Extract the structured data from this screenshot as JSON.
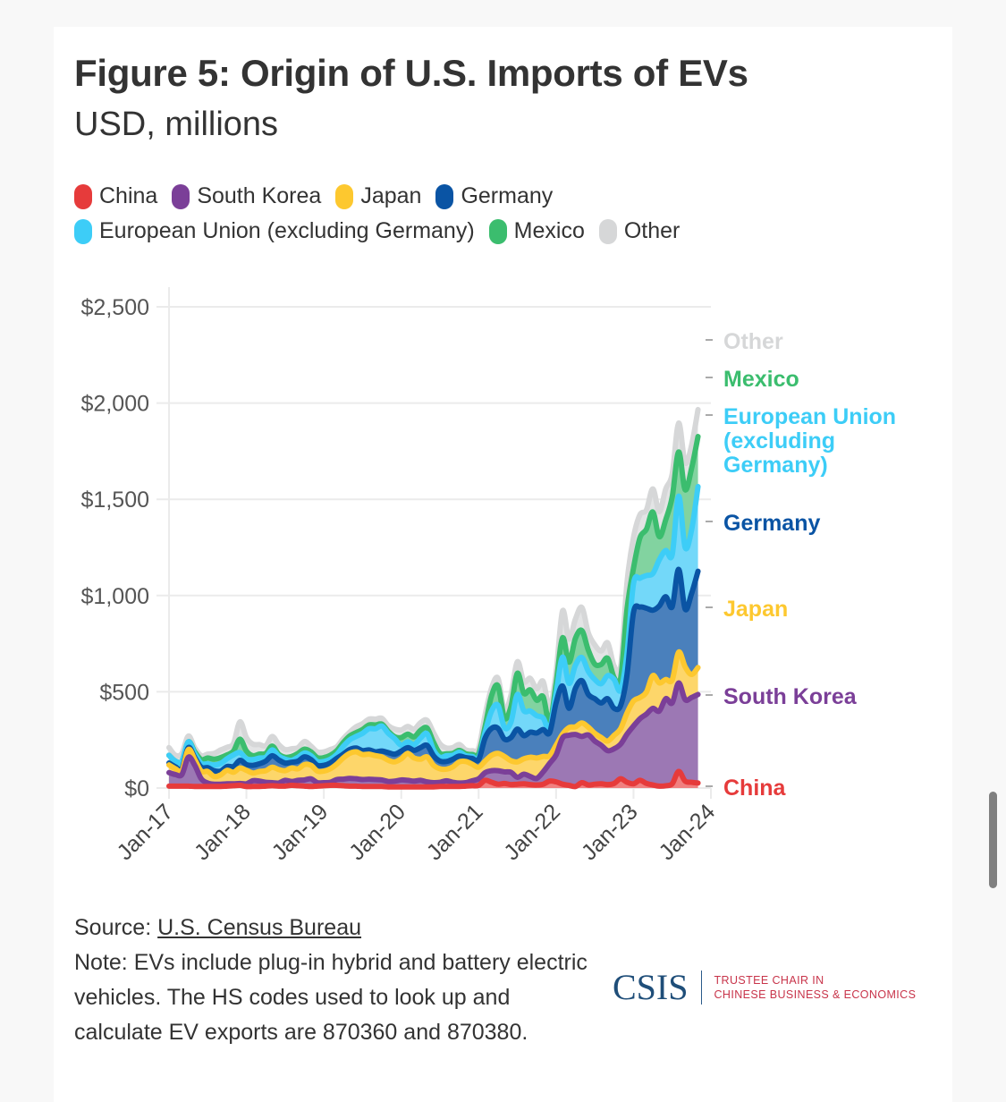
{
  "header": {
    "title": "Figure 5: Origin of U.S. Imports of EVs",
    "subtitle": "USD, millions"
  },
  "legend": {
    "row1": [
      {
        "label": "China",
        "color": "#e63b3b"
      },
      {
        "label": "South Korea",
        "color": "#7b3f98"
      },
      {
        "label": "Japan",
        "color": "#fdc82f"
      },
      {
        "label": "Germany",
        "color": "#0a54a4"
      }
    ],
    "row2": [
      {
        "label": "European Union (excluding Germany)",
        "color": "#3dcdf7"
      },
      {
        "label": "Mexico",
        "color": "#3bbd6e"
      },
      {
        "label": "Other",
        "color": "#d6d7d8"
      }
    ]
  },
  "footer": {
    "source_prefix": "Source: ",
    "source_link": "U.S. Census Bureau",
    "note": "Note: EVs include plug-in hybrid and battery electric vehicles. The HS codes used to look up and calculate EV exports are 870360 and 870380."
  },
  "logo": {
    "name": "CSIS",
    "line1": "TRUSTEE CHAIR IN",
    "line2": "CHINESE BUSINESS & ECONOMICS"
  },
  "chart_data": {
    "type": "area",
    "stacked": true,
    "title": "Figure 5: Origin of U.S. Imports of EVs",
    "subtitle": "USD, millions",
    "xlabel": "",
    "ylabel": "",
    "ylim": [
      0,
      2500
    ],
    "yticks": [
      0,
      500,
      1000,
      1500,
      2000,
      2500
    ],
    "ytick_labels": [
      "$0",
      "$500",
      "$1,000",
      "$1,500",
      "$2,000",
      "$2,500"
    ],
    "xticks": [
      "Jan-17",
      "Jan-18",
      "Jan-19",
      "Jan-20",
      "Jan-21",
      "Jan-22",
      "Jan-23",
      "Jan-24"
    ],
    "x_start": "2017-01",
    "x_frequency": "monthly",
    "grid": true,
    "legend_position": "top",
    "series": [
      {
        "name": "China",
        "label": "China",
        "color": "#e63b3b",
        "fill": "#f08080",
        "values": [
          10,
          10,
          10,
          10,
          8,
          8,
          8,
          8,
          8,
          10,
          12,
          14,
          8,
          8,
          8,
          10,
          12,
          10,
          10,
          14,
          12,
          10,
          8,
          10,
          12,
          14,
          14,
          12,
          10,
          10,
          8,
          8,
          8,
          8,
          6,
          6,
          6,
          6,
          6,
          6,
          6,
          6,
          8,
          8,
          8,
          8,
          10,
          12,
          14,
          40,
          30,
          20,
          24,
          18,
          20,
          22,
          18,
          16,
          20,
          36,
          32,
          20,
          14,
          8,
          28,
          16,
          20,
          22,
          18,
          24,
          48,
          30,
          22,
          40,
          24,
          16,
          10,
          12,
          22,
          86,
          36,
          30,
          26
        ]
      },
      {
        "name": "South Korea",
        "label": "South Korea",
        "color": "#7b3f98",
        "fill": "#9c78b4",
        "values": [
          70,
          60,
          60,
          150,
          110,
          40,
          18,
          12,
          12,
          12,
          10,
          10,
          14,
          30,
          28,
          20,
          16,
          16,
          30,
          20,
          28,
          32,
          40,
          18,
          16,
          16,
          30,
          34,
          40,
          38,
          36,
          38,
          36,
          34,
          28,
          30,
          36,
          34,
          30,
          34,
          26,
          22,
          22,
          30,
          22,
          18,
          18,
          26,
          34,
          40,
          60,
          70,
          60,
          64,
          36,
          50,
          42,
          34,
          64,
          92,
          140,
          240,
          260,
          270,
          240,
          260,
          224,
          200,
          176,
          180,
          180,
          250,
          300,
          320,
          360,
          398,
          390,
          452,
          420,
          460,
          424,
          440,
          460
        ]
      },
      {
        "name": "Japan",
        "label": "Japan",
        "color": "#fdc82f",
        "fill": "#fdd66a",
        "values": [
          40,
          30,
          20,
          40,
          30,
          40,
          60,
          40,
          48,
          70,
          60,
          80,
          70,
          40,
          50,
          60,
          80,
          70,
          50,
          70,
          60,
          80,
          70,
          60,
          60,
          70,
          80,
          110,
          130,
          140,
          130,
          130,
          124,
          120,
          110,
          100,
          110,
          140,
          120,
          110,
          130,
          90,
          70,
          60,
          80,
          110,
          110,
          86,
          60,
          60,
          80,
          90,
          80,
          60,
          80,
          80,
          100,
          106,
          80,
          40,
          50,
          20,
          40,
          40,
          70,
          40,
          40,
          40,
          50,
          70,
          80,
          110,
          130,
          110,
          114,
          170,
          146,
          100,
          120,
          160,
          170,
          120,
          140
        ]
      },
      {
        "name": "Germany",
        "label": "Germany",
        "color": "#0a54a4",
        "fill": "#4a80bc",
        "values": [
          10,
          10,
          10,
          10,
          10,
          20,
          20,
          30,
          20,
          20,
          30,
          40,
          30,
          40,
          40,
          50,
          60,
          50,
          40,
          30,
          40,
          40,
          30,
          30,
          30,
          30,
          30,
          20,
          20,
          20,
          20,
          22,
          20,
          30,
          40,
          40,
          40,
          30,
          40,
          60,
          60,
          50,
          40,
          40,
          40,
          30,
          20,
          30,
          40,
          120,
          140,
          130,
          90,
          120,
          170,
          120,
          130,
          130,
          140,
          120,
          220,
          250,
          100,
          200,
          220,
          170,
          180,
          180,
          220,
          140,
          120,
          200,
          460,
          470,
          436,
          340,
          400,
          430,
          380,
          430,
          300,
          420,
          500
        ]
      },
      {
        "name": "European Union (excluding Germany)",
        "label": "European Union (excluding Germany)",
        "color": "#3dcdf7",
        "fill": "#73d8f9",
        "values": [
          40,
          30,
          40,
          30,
          20,
          20,
          20,
          30,
          40,
          40,
          60,
          40,
          30,
          30,
          30,
          20,
          30,
          20,
          20,
          10,
          20,
          20,
          20,
          20,
          20,
          20,
          20,
          40,
          50,
          60,
          90,
          110,
          120,
          130,
          100,
          80,
          30,
          30,
          30,
          50,
          60,
          30,
          20,
          30,
          20,
          20,
          10,
          10,
          10,
          30,
          90,
          120,
          60,
          80,
          180,
          130,
          110,
          90,
          60,
          20,
          50,
          150,
          130,
          120,
          120,
          120,
          100,
          100,
          120,
          150,
          80,
          110,
          150,
          150,
          170,
          190,
          240,
          240,
          270,
          380,
          320,
          330,
          440
        ]
      },
      {
        "name": "Mexico",
        "label": "Mexico",
        "color": "#3bbd6e",
        "fill": "#82d3a0",
        "values": [
          0,
          0,
          0,
          0,
          10,
          20,
          30,
          30,
          30,
          20,
          20,
          70,
          40,
          20,
          20,
          20,
          20,
          10,
          10,
          20,
          20,
          20,
          20,
          20,
          20,
          20,
          20,
          20,
          20,
          20,
          20,
          20,
          20,
          10,
          10,
          10,
          40,
          40,
          40,
          40,
          30,
          40,
          20,
          10,
          10,
          10,
          10,
          10,
          20,
          30,
          80,
          100,
          50,
          80,
          110,
          90,
          110,
          80,
          110,
          30,
          50,
          100,
          110,
          140,
          140,
          110,
          80,
          100,
          90,
          10,
          60,
          230,
          80,
          210,
          240,
          320,
          120,
          160,
          300,
          230,
          300,
          320,
          260
        ]
      },
      {
        "name": "Other",
        "label": "Other",
        "color": "#d6d7d8",
        "fill": "#e3e4e5",
        "values": [
          40,
          30,
          40,
          30,
          20,
          20,
          20,
          30,
          40,
          40,
          40,
          90,
          70,
          60,
          50,
          40,
          50,
          50,
          40,
          40,
          30,
          40,
          30,
          30,
          30,
          30,
          20,
          20,
          20,
          30,
          30,
          30,
          30,
          30,
          30,
          40,
          40,
          40,
          40,
          40,
          40,
          50,
          50,
          30,
          30,
          30,
          20,
          20,
          30,
          60,
          40,
          40,
          40,
          60,
          60,
          60,
          60,
          60,
          80,
          80,
          60,
          140,
          120,
          100,
          120,
          90,
          100,
          70,
          80,
          60,
          60,
          140,
          160,
          120,
          100,
          120,
          130,
          160,
          120,
          150,
          140,
          120,
          140
        ]
      }
    ]
  }
}
